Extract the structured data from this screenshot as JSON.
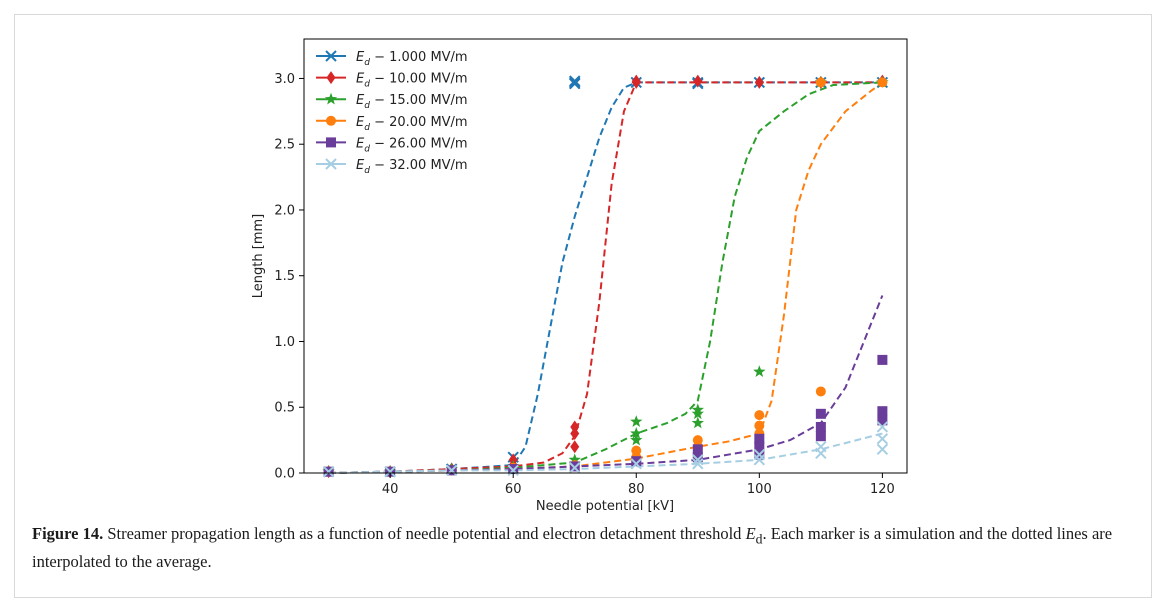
{
  "figure": {
    "caption_lead": "Figure 14.",
    "caption_pre": " Streamer propagation length as a function of needle potential and electron detachment threshold ",
    "caption_sym": "E",
    "caption_sub": "d",
    "caption_post": ". Each marker is a simulation and the dotted lines are interpolated to the average."
  },
  "chart_data": {
    "type": "scatter",
    "xlabel": "Needle potential [kV]",
    "ylabel": "Length [mm]",
    "xlim": [
      26,
      124
    ],
    "ylim": [
      0,
      3.3
    ],
    "xticks": [
      40,
      60,
      80,
      100,
      120
    ],
    "yticks": [
      0.0,
      0.5,
      1.0,
      1.5,
      2.0,
      2.5,
      3.0
    ],
    "xtick_labels": [
      "40",
      "60",
      "80",
      "100",
      "120"
    ],
    "ytick_labels": [
      "0.0",
      "0.5",
      "1.0",
      "1.5",
      "2.0",
      "2.5",
      "3.0"
    ],
    "grid": false,
    "legend_position": "top-left",
    "series": [
      {
        "name": "E_d − 1.000 MV/m",
        "label_sym": "E",
        "label_sub": "d",
        "label_rest": " − 1.000 MV/m",
        "color": "#1f77b4",
        "marker": "x",
        "points": [
          [
            30,
            0.01
          ],
          [
            40,
            0.01
          ],
          [
            50,
            0.03
          ],
          [
            60,
            0.12
          ],
          [
            70,
            2.96
          ],
          [
            70,
            2.97
          ],
          [
            70,
            2.98
          ],
          [
            80,
            2.97
          ],
          [
            90,
            2.97
          ],
          [
            90,
            2.96
          ],
          [
            100,
            2.97
          ],
          [
            110,
            2.97
          ],
          [
            120,
            2.97
          ]
        ],
        "curve": [
          [
            30,
            0.0
          ],
          [
            40,
            0.01
          ],
          [
            50,
            0.03
          ],
          [
            60,
            0.06
          ],
          [
            62,
            0.2
          ],
          [
            64,
            0.6
          ],
          [
            66,
            1.1
          ],
          [
            68,
            1.6
          ],
          [
            70,
            1.95
          ],
          [
            72,
            2.25
          ],
          [
            74,
            2.55
          ],
          [
            76,
            2.78
          ],
          [
            78,
            2.93
          ],
          [
            80,
            2.97
          ],
          [
            90,
            2.97
          ],
          [
            100,
            2.97
          ],
          [
            110,
            2.97
          ],
          [
            120,
            2.97
          ]
        ]
      },
      {
        "name": "E_d − 10.00 MV/m",
        "label_sym": "E",
        "label_sub": "d",
        "label_rest": " − 10.00 MV/m",
        "color": "#d62728",
        "marker": "diamond",
        "points": [
          [
            30,
            0.01
          ],
          [
            40,
            0.01
          ],
          [
            50,
            0.03
          ],
          [
            60,
            0.1
          ],
          [
            60,
            0.06
          ],
          [
            70,
            0.35
          ],
          [
            70,
            0.3
          ],
          [
            70,
            0.2
          ],
          [
            80,
            2.98
          ],
          [
            80,
            2.97
          ],
          [
            90,
            2.98
          ],
          [
            100,
            2.97
          ],
          [
            110,
            2.97
          ],
          [
            120,
            2.98
          ]
        ],
        "curve": [
          [
            30,
            0.0
          ],
          [
            40,
            0.01
          ],
          [
            50,
            0.03
          ],
          [
            60,
            0.05
          ],
          [
            65,
            0.08
          ],
          [
            68,
            0.15
          ],
          [
            70,
            0.28
          ],
          [
            72,
            0.6
          ],
          [
            74,
            1.3
          ],
          [
            76,
            2.2
          ],
          [
            78,
            2.75
          ],
          [
            80,
            2.97
          ],
          [
            90,
            2.97
          ],
          [
            100,
            2.97
          ],
          [
            110,
            2.97
          ],
          [
            120,
            2.97
          ]
        ]
      },
      {
        "name": "E_d − 15.00 MV/m",
        "label_sym": "E",
        "label_sub": "d",
        "label_rest": " − 15.00 MV/m",
        "color": "#2ca02c",
        "marker": "star",
        "points": [
          [
            30,
            0.01
          ],
          [
            40,
            0.01
          ],
          [
            50,
            0.03
          ],
          [
            60,
            0.05
          ],
          [
            70,
            0.1
          ],
          [
            70,
            0.07
          ],
          [
            80,
            0.39
          ],
          [
            80,
            0.3
          ],
          [
            80,
            0.25
          ],
          [
            90,
            0.48
          ],
          [
            90,
            0.45
          ],
          [
            90,
            0.38
          ],
          [
            100,
            0.77
          ],
          [
            110,
            2.97
          ],
          [
            120,
            2.97
          ]
        ],
        "curve": [
          [
            30,
            0.0
          ],
          [
            40,
            0.01
          ],
          [
            50,
            0.02
          ],
          [
            60,
            0.04
          ],
          [
            70,
            0.08
          ],
          [
            75,
            0.18
          ],
          [
            80,
            0.3
          ],
          [
            85,
            0.38
          ],
          [
            88,
            0.45
          ],
          [
            90,
            0.55
          ],
          [
            92,
            1.0
          ],
          [
            94,
            1.6
          ],
          [
            96,
            2.1
          ],
          [
            98,
            2.4
          ],
          [
            100,
            2.6
          ],
          [
            104,
            2.75
          ],
          [
            108,
            2.88
          ],
          [
            112,
            2.95
          ],
          [
            120,
            2.97
          ]
        ]
      },
      {
        "name": "E_d − 20.00 MV/m",
        "label_sym": "E",
        "label_sub": "d",
        "label_rest": " − 20.00 MV/m",
        "color": "#ff7f0e",
        "marker": "circle",
        "points": [
          [
            30,
            0.01
          ],
          [
            40,
            0.01
          ],
          [
            50,
            0.02
          ],
          [
            60,
            0.04
          ],
          [
            70,
            0.06
          ],
          [
            80,
            0.17
          ],
          [
            80,
            0.12
          ],
          [
            90,
            0.25
          ],
          [
            90,
            0.2
          ],
          [
            100,
            0.44
          ],
          [
            100,
            0.36
          ],
          [
            100,
            0.3
          ],
          [
            110,
            0.62
          ],
          [
            110,
            2.97
          ],
          [
            120,
            2.97
          ]
        ],
        "curve": [
          [
            30,
            0.0
          ],
          [
            40,
            0.01
          ],
          [
            50,
            0.02
          ],
          [
            60,
            0.03
          ],
          [
            70,
            0.05
          ],
          [
            80,
            0.11
          ],
          [
            90,
            0.2
          ],
          [
            95,
            0.24
          ],
          [
            100,
            0.3
          ],
          [
            102,
            0.55
          ],
          [
            104,
            1.2
          ],
          [
            106,
            2.0
          ],
          [
            108,
            2.3
          ],
          [
            110,
            2.5
          ],
          [
            114,
            2.75
          ],
          [
            118,
            2.9
          ],
          [
            120,
            2.97
          ]
        ]
      },
      {
        "name": "E_d − 26.00 MV/m",
        "label_sym": "E",
        "label_sub": "d",
        "label_rest": " − 26.00 MV/m",
        "color": "#6a3d9a",
        "marker": "square",
        "points": [
          [
            30,
            0.01
          ],
          [
            40,
            0.01
          ],
          [
            50,
            0.02
          ],
          [
            60,
            0.03
          ],
          [
            70,
            0.05
          ],
          [
            80,
            0.09
          ],
          [
            90,
            0.18
          ],
          [
            90,
            0.12
          ],
          [
            100,
            0.26
          ],
          [
            100,
            0.2
          ],
          [
            100,
            0.14
          ],
          [
            110,
            0.45
          ],
          [
            110,
            0.35
          ],
          [
            110,
            0.28
          ],
          [
            120,
            0.86
          ],
          [
            120,
            0.47
          ],
          [
            120,
            0.4
          ]
        ],
        "curve": [
          [
            30,
            0.0
          ],
          [
            40,
            0.01
          ],
          [
            50,
            0.02
          ],
          [
            60,
            0.03
          ],
          [
            70,
            0.05
          ],
          [
            80,
            0.07
          ],
          [
            90,
            0.1
          ],
          [
            100,
            0.18
          ],
          [
            105,
            0.25
          ],
          [
            110,
            0.38
          ],
          [
            114,
            0.65
          ],
          [
            117,
            1.0
          ],
          [
            120,
            1.35
          ]
        ]
      },
      {
        "name": "E_d − 32.00 MV/m",
        "label_sym": "E",
        "label_sub": "d",
        "label_rest": " − 32.00 MV/m",
        "color": "#a6cee3",
        "marker": "x",
        "points": [
          [
            30,
            0.01
          ],
          [
            40,
            0.01
          ],
          [
            50,
            0.02
          ],
          [
            60,
            0.02
          ],
          [
            70,
            0.04
          ],
          [
            80,
            0.07
          ],
          [
            90,
            0.1
          ],
          [
            90,
            0.07
          ],
          [
            100,
            0.14
          ],
          [
            100,
            0.1
          ],
          [
            110,
            0.2
          ],
          [
            110,
            0.15
          ],
          [
            120,
            0.35
          ],
          [
            120,
            0.26
          ],
          [
            120,
            0.18
          ]
        ],
        "curve": [
          [
            30,
            0.0
          ],
          [
            40,
            0.01
          ],
          [
            50,
            0.02
          ],
          [
            60,
            0.02
          ],
          [
            70,
            0.03
          ],
          [
            80,
            0.05
          ],
          [
            90,
            0.07
          ],
          [
            100,
            0.1
          ],
          [
            110,
            0.18
          ],
          [
            120,
            0.3
          ]
        ]
      }
    ]
  }
}
